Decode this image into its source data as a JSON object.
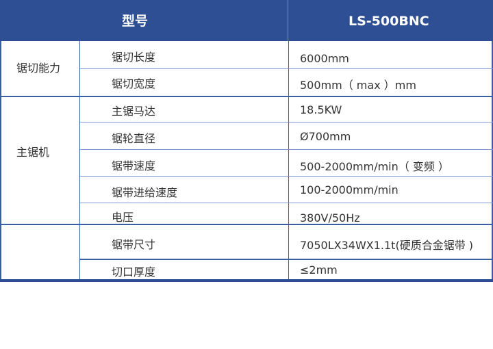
{
  "header": {
    "label": "型号",
    "model": "LS-500BNC"
  },
  "groups": [
    "锯切能力",
    "主锯机",
    ""
  ],
  "rows": [
    {
      "name": "锯切长度",
      "value": "6000mm"
    },
    {
      "name": "锯切宽度",
      "value": "500mm（ max ）mm"
    },
    {
      "name": "主锯马达",
      "value": "18.5KW"
    },
    {
      "name": "锯轮直径",
      "value": "Ø700mm"
    },
    {
      "name": "锯带速度",
      "value": "500-2000mm/min（ 变频 ）"
    },
    {
      "name": "锯带进给速度",
      "value": "100-2000mm/min"
    },
    {
      "name": "电压",
      "value": "380V/50Hz"
    },
    {
      "name": "锯带尺寸",
      "value": "7050LX34WX1.1t(硬质合金锯带 )"
    },
    {
      "name": "切口厚度",
      "value": "≤2mm"
    }
  ],
  "colors": {
    "header": "#2e4f94",
    "border": "#3b5da3"
  }
}
